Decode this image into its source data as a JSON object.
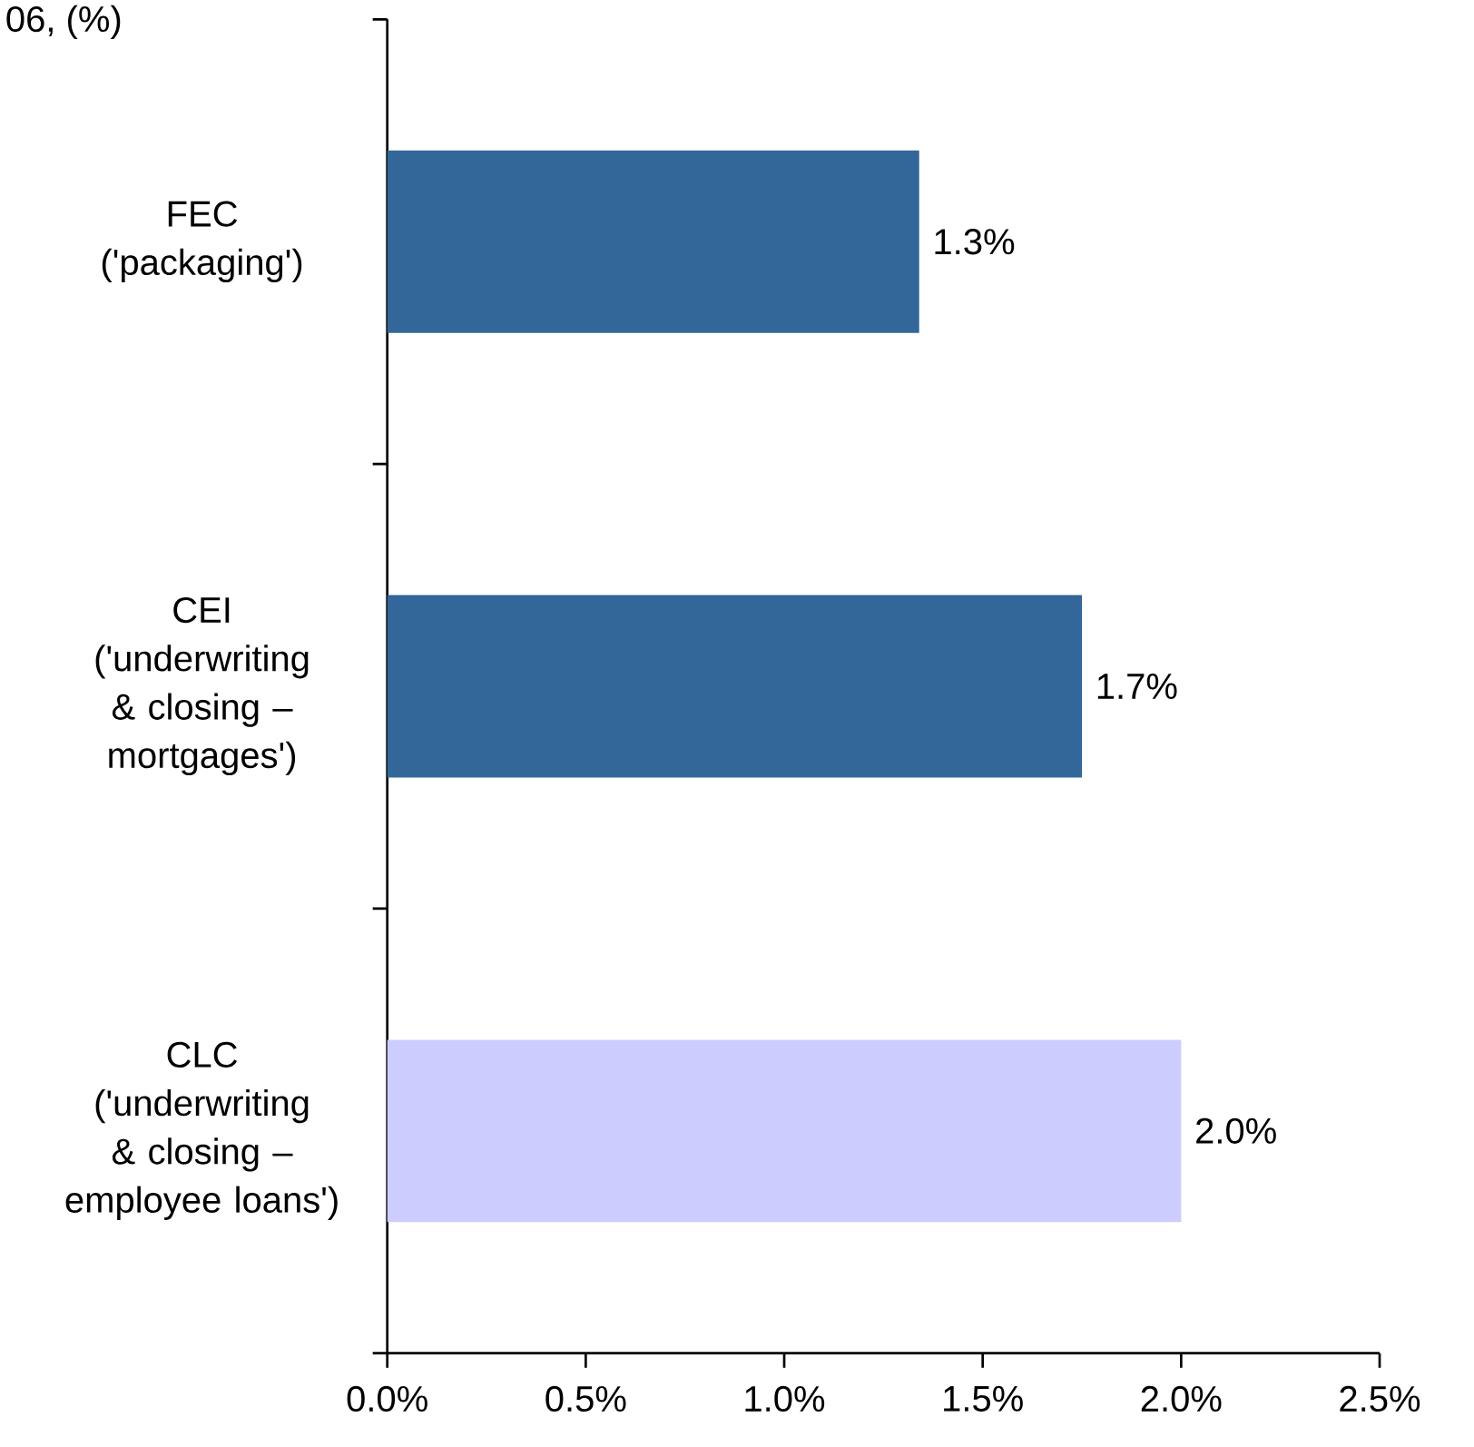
{
  "chart_data": {
    "type": "bar",
    "orientation": "horizontal",
    "title": "06, (%)",
    "categories": [
      "FEC ('packaging')",
      "CEI ('underwriting & closing – mortgages')",
      "CLC ('underwriting & closing – employee loans')"
    ],
    "values": [
      1.34,
      1.75,
      2.0
    ],
    "colors": [
      "#336699",
      "#336699",
      "#ccccff"
    ],
    "value_labels": [
      "1.3%",
      "1.7%",
      "2.0%"
    ],
    "xlim": [
      0,
      2.5
    ],
    "xticks": [
      {
        "value": 0,
        "label": "0.0%"
      },
      {
        "value": 0.5,
        "label": "0.5%"
      },
      {
        "value": 1.0,
        "label": "1.0%"
      },
      {
        "value": 1.5,
        "label": "1.5%"
      },
      {
        "value": 2.0,
        "label": "2.0%"
      },
      {
        "value": 2.5,
        "label": "2.5%"
      }
    ]
  }
}
